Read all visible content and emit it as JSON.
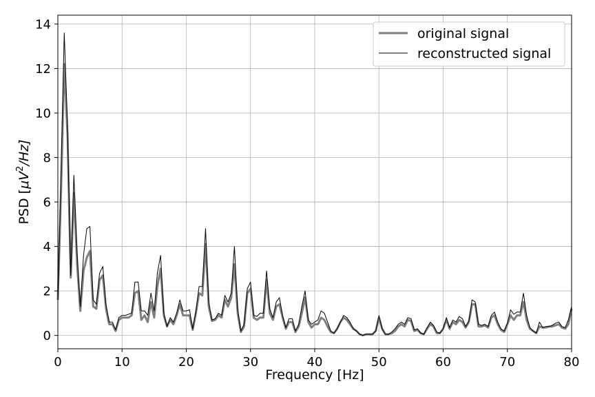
{
  "chart_data": {
    "type": "line",
    "xlabel": "Frequency [Hz]",
    "ylabel_prefix": "PSD [",
    "ylabel_mu": "μ",
    "ylabel_V": "V",
    "ylabel_sup": "2",
    "ylabel_suffix": "/Hz]",
    "xlim": [
      0,
      80
    ],
    "ylim": [
      -0.6,
      14.4
    ],
    "xticks": [
      0,
      10,
      20,
      30,
      40,
      50,
      60,
      70,
      80
    ],
    "yticks": [
      0,
      2,
      4,
      6,
      8,
      10,
      12,
      14
    ],
    "grid": true,
    "legend": "top-right",
    "series": [
      {
        "name": "original signal",
        "color": "#7f7f7f",
        "x": [
          0,
          0.5,
          1,
          1.5,
          2,
          2.5,
          3,
          3.5,
          4,
          4.5,
          5,
          5.5,
          6,
          6.5,
          7,
          7.5,
          8,
          8.5,
          9,
          9.5,
          10,
          10.5,
          11,
          11.5,
          12,
          12.5,
          13,
          13.5,
          14,
          14.5,
          15,
          15.5,
          16,
          16.5,
          17,
          17.5,
          18,
          18.5,
          19,
          19.5,
          20,
          20.5,
          21,
          21.5,
          22,
          22.5,
          23,
          23.5,
          24,
          24.5,
          25,
          25.5,
          26,
          26.5,
          27,
          27.5,
          28,
          28.5,
          29,
          29.5,
          30,
          30.5,
          31,
          31.5,
          32,
          32.5,
          33,
          33.5,
          34,
          34.5,
          35,
          35.5,
          36,
          36.5,
          37,
          37.5,
          38,
          38.5,
          39,
          39.5,
          40,
          40.5,
          41,
          41.5,
          42,
          42.5,
          43,
          43.5,
          44,
          44.5,
          45,
          45.5,
          46,
          46.5,
          47,
          47.5,
          48,
          48.5,
          49,
          49.5,
          50,
          50.5,
          51,
          51.5,
          52,
          52.5,
          53,
          53.5,
          54,
          54.5,
          55,
          55.5,
          56,
          56.5,
          57,
          57.5,
          58,
          58.5,
          59,
          59.5,
          60,
          60.5,
          61,
          61.5,
          62,
          62.5,
          63,
          63.5,
          64,
          64.5,
          65,
          65.5,
          66,
          66.5,
          67,
          67.5,
          68,
          68.5,
          69,
          69.5,
          70,
          70.5,
          71,
          71.5,
          72,
          72.5,
          73,
          73.5,
          74,
          74.5,
          75,
          75.5,
          76,
          76.5,
          77,
          77.5,
          78,
          78.5,
          79,
          79.5,
          80
        ],
        "values": [
          1.6,
          6.5,
          12.2,
          9.0,
          2.6,
          6.4,
          3.2,
          1.1,
          2.9,
          3.5,
          3.8,
          1.3,
          1.2,
          2.5,
          2.7,
          1.2,
          0.5,
          0.5,
          0.2,
          0.7,
          0.8,
          0.8,
          0.8,
          0.9,
          1.9,
          2.0,
          0.7,
          0.9,
          0.6,
          1.5,
          0.8,
          2.2,
          3.0,
          0.9,
          0.4,
          0.7,
          0.5,
          0.9,
          1.4,
          0.9,
          0.9,
          0.9,
          0.25,
          1.0,
          1.9,
          1.8,
          4.1,
          1.3,
          0.65,
          0.7,
          0.9,
          0.8,
          1.6,
          1.3,
          1.7,
          3.2,
          1.0,
          0.15,
          0.4,
          1.9,
          2.1,
          0.8,
          0.7,
          0.8,
          0.8,
          2.5,
          1.0,
          0.7,
          1.3,
          1.4,
          0.8,
          0.3,
          0.6,
          0.6,
          0.15,
          0.4,
          1.0,
          1.7,
          0.6,
          0.35,
          0.5,
          0.5,
          0.8,
          0.7,
          0.4,
          0.15,
          0.1,
          0.3,
          0.6,
          0.8,
          0.7,
          0.5,
          0.3,
          0.2,
          0.05,
          0.0,
          0.05,
          0.05,
          0.05,
          0.2,
          0.8,
          0.3,
          0.05,
          0.05,
          0.1,
          0.2,
          0.4,
          0.5,
          0.4,
          0.7,
          0.65,
          0.2,
          0.25,
          0.1,
          0.05,
          0.3,
          0.5,
          0.4,
          0.1,
          0.1,
          0.3,
          0.7,
          0.3,
          0.6,
          0.5,
          0.7,
          0.6,
          0.35,
          0.6,
          1.4,
          1.4,
          0.4,
          0.4,
          0.45,
          0.35,
          0.8,
          0.9,
          0.5,
          0.25,
          0.15,
          0.5,
          0.9,
          0.7,
          0.9,
          0.9,
          1.5,
          0.7,
          0.3,
          0.2,
          0.1,
          0.4,
          0.35,
          0.35,
          0.4,
          0.4,
          0.45,
          0.5,
          0.35,
          0.3,
          0.5,
          1.2
        ]
      },
      {
        "name": "reconstructed signal",
        "color": "#000000",
        "x": [
          0,
          0.5,
          1,
          1.5,
          2,
          2.5,
          3,
          3.5,
          4,
          4.5,
          5,
          5.5,
          6,
          6.5,
          7,
          7.5,
          8,
          8.5,
          9,
          9.5,
          10,
          10.5,
          11,
          11.5,
          12,
          12.5,
          13,
          13.5,
          14,
          14.5,
          15,
          15.5,
          16,
          16.5,
          17,
          17.5,
          18,
          18.5,
          19,
          19.5,
          20,
          20.5,
          21,
          21.5,
          22,
          22.5,
          23,
          23.5,
          24,
          24.5,
          25,
          25.5,
          26,
          26.5,
          27,
          27.5,
          28,
          28.5,
          29,
          29.5,
          30,
          30.5,
          31,
          31.5,
          32,
          32.5,
          33,
          33.5,
          34,
          34.5,
          35,
          35.5,
          36,
          36.5,
          37,
          37.5,
          38,
          38.5,
          39,
          39.5,
          40,
          40.5,
          41,
          41.5,
          42,
          42.5,
          43,
          43.5,
          44,
          44.5,
          45,
          45.5,
          46,
          46.5,
          47,
          47.5,
          48,
          48.5,
          49,
          49.5,
          50,
          50.5,
          51,
          51.5,
          52,
          52.5,
          53,
          53.5,
          54,
          54.5,
          55,
          55.5,
          56,
          56.5,
          57,
          57.5,
          58,
          58.5,
          59,
          59.5,
          60,
          60.5,
          61,
          61.5,
          62,
          62.5,
          63,
          63.5,
          64,
          64.5,
          65,
          65.5,
          66,
          66.5,
          67,
          67.5,
          68,
          68.5,
          69,
          69.5,
          70,
          70.5,
          71,
          71.5,
          72,
          72.5,
          73,
          73.5,
          74,
          74.5,
          75,
          75.5,
          76,
          76.5,
          77,
          77.5,
          78,
          78.5,
          79,
          79.5,
          80
        ],
        "values": [
          1.5,
          7.5,
          13.6,
          9.5,
          2.7,
          7.2,
          3.7,
          1.3,
          3.6,
          4.8,
          4.9,
          1.6,
          1.4,
          2.8,
          3.1,
          1.4,
          0.6,
          0.6,
          0.25,
          0.8,
          0.9,
          0.9,
          0.95,
          1.0,
          2.4,
          2.4,
          1.1,
          1.1,
          0.9,
          1.9,
          1.1,
          2.8,
          3.6,
          1.0,
          0.4,
          0.8,
          0.6,
          1.0,
          1.6,
          1.1,
          1.1,
          1.15,
          0.3,
          1.1,
          2.2,
          2.2,
          4.8,
          1.5,
          0.7,
          0.75,
          1.0,
          0.9,
          1.8,
          1.5,
          1.9,
          4.0,
          1.2,
          0.2,
          0.5,
          2.1,
          2.4,
          0.9,
          0.85,
          1.0,
          1.0,
          2.9,
          1.2,
          0.8,
          1.5,
          1.7,
          0.9,
          0.35,
          0.75,
          0.75,
          0.2,
          0.5,
          1.3,
          2.0,
          0.7,
          0.5,
          0.6,
          0.7,
          1.1,
          1.0,
          0.6,
          0.2,
          0.1,
          0.3,
          0.6,
          0.9,
          0.8,
          0.6,
          0.3,
          0.2,
          0.05,
          0.0,
          0.05,
          0.05,
          0.05,
          0.2,
          0.9,
          0.3,
          0.05,
          0.05,
          0.15,
          0.3,
          0.5,
          0.6,
          0.5,
          0.8,
          0.75,
          0.25,
          0.3,
          0.1,
          0.05,
          0.35,
          0.6,
          0.45,
          0.15,
          0.1,
          0.3,
          0.8,
          0.35,
          0.7,
          0.6,
          0.85,
          0.75,
          0.4,
          0.65,
          1.6,
          1.5,
          0.5,
          0.45,
          0.5,
          0.4,
          0.9,
          1.05,
          0.6,
          0.3,
          0.2,
          0.55,
          1.15,
          0.95,
          1.05,
          1.05,
          1.9,
          0.9,
          0.35,
          0.2,
          0.1,
          0.6,
          0.35,
          0.4,
          0.4,
          0.45,
          0.55,
          0.6,
          0.4,
          0.35,
          0.7,
          1.3
        ]
      }
    ]
  }
}
